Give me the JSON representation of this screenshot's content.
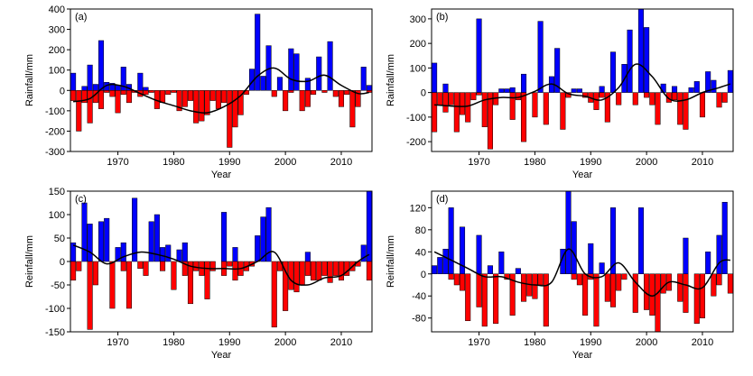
{
  "chart_data": [
    {
      "type": "bar",
      "label": "(a)",
      "xlabel": "Year",
      "ylabel": "Rainfall/mm",
      "x": [
        1962,
        1963,
        1964,
        1965,
        1966,
        1967,
        1968,
        1969,
        1970,
        1971,
        1972,
        1973,
        1974,
        1975,
        1976,
        1977,
        1978,
        1979,
        1980,
        1981,
        1982,
        1983,
        1984,
        1985,
        1986,
        1987,
        1988,
        1989,
        1990,
        1991,
        1992,
        1993,
        1994,
        1995,
        1996,
        1997,
        1998,
        1999,
        2000,
        2001,
        2002,
        2003,
        2004,
        2005,
        2006,
        2007,
        2008,
        2009,
        2010,
        2011,
        2012,
        2013,
        2014,
        2015
      ],
      "xlim": [
        1961.5,
        2015.5
      ],
      "xticks": [
        1970,
        1980,
        1990,
        2000,
        2010
      ],
      "ylim": [
        -300,
        400
      ],
      "yticks": [
        -300,
        -200,
        -100,
        0,
        100,
        200,
        300,
        400
      ],
      "series": [
        {
          "color": "#0000ff",
          "values": [
            85,
            null,
            20,
            125,
            30,
            245,
            40,
            35,
            25,
            115,
            30,
            null,
            85,
            15,
            null,
            null,
            null,
            null,
            null,
            null,
            null,
            null,
            null,
            null,
            null,
            null,
            null,
            null,
            null,
            null,
            null,
            null,
            105,
            375,
            70,
            220,
            null,
            65,
            null,
            205,
            180,
            null,
            60,
            null,
            165,
            null,
            240,
            null,
            null,
            null,
            null,
            null,
            115,
            25
          ]
        },
        {
          "color": "#ff0000",
          "values": [
            -50,
            -200,
            -60,
            -160,
            -60,
            -90,
            -10,
            -30,
            -110,
            -20,
            -60,
            -10,
            -30,
            -20,
            -10,
            -90,
            -60,
            -20,
            -10,
            -100,
            -80,
            -50,
            -160,
            -150,
            -120,
            -50,
            -90,
            -60,
            -280,
            -180,
            -120,
            -20,
            null,
            null,
            null,
            null,
            -30,
            null,
            -100,
            -10,
            null,
            -100,
            -80,
            -20,
            null,
            -10,
            null,
            -30,
            -80,
            -20,
            -180,
            -80,
            null,
            -10
          ]
        },
        {
          "type": "line",
          "color": "#000000",
          "x": [
            1962,
            1965,
            1968,
            1971,
            1974,
            1977,
            1980,
            1983,
            1986,
            1989,
            1992,
            1995,
            1998,
            2001,
            2004,
            2007,
            2010,
            2013,
            2015
          ],
          "values": [
            -55,
            -40,
            25,
            20,
            -15,
            -50,
            -75,
            -100,
            -110,
            -80,
            -25,
            70,
            110,
            55,
            45,
            75,
            25,
            -15,
            -10
          ]
        }
      ]
    },
    {
      "type": "bar",
      "label": "(b)",
      "xlabel": "Year",
      "ylabel": "Rainfall/mm",
      "x": [
        1962,
        1963,
        1964,
        1965,
        1966,
        1967,
        1968,
        1969,
        1970,
        1971,
        1972,
        1973,
        1974,
        1975,
        1976,
        1977,
        1978,
        1979,
        1980,
        1981,
        1982,
        1983,
        1984,
        1985,
        1986,
        1987,
        1988,
        1989,
        1990,
        1991,
        1992,
        1993,
        1994,
        1995,
        1996,
        1997,
        1998,
        1999,
        2000,
        2001,
        2002,
        2003,
        2004,
        2005,
        2006,
        2007,
        2008,
        2009,
        2010,
        2011,
        2012,
        2013,
        2014,
        2015
      ],
      "xlim": [
        1961.5,
        2015.5
      ],
      "xticks": [
        1970,
        1980,
        1990,
        2000,
        2010
      ],
      "ylim": [
        -240,
        340
      ],
      "yticks": [
        -200,
        -100,
        0,
        100,
        200,
        300
      ],
      "series": [
        {
          "color": "#0000ff",
          "values": [
            120,
            null,
            35,
            null,
            null,
            null,
            null,
            null,
            300,
            null,
            null,
            null,
            15,
            15,
            20,
            null,
            75,
            null,
            null,
            290,
            null,
            65,
            180,
            null,
            null,
            15,
            15,
            null,
            null,
            null,
            25,
            null,
            165,
            null,
            115,
            255,
            null,
            340,
            265,
            null,
            null,
            35,
            null,
            25,
            null,
            null,
            20,
            45,
            null,
            85,
            50,
            null,
            null,
            90
          ]
        },
        {
          "color": "#ff0000",
          "values": [
            -160,
            -50,
            -80,
            -50,
            -160,
            -90,
            -120,
            -30,
            -10,
            -140,
            -230,
            -50,
            null,
            null,
            -110,
            -30,
            -200,
            null,
            -100,
            null,
            -130,
            null,
            null,
            -150,
            -20,
            null,
            null,
            -20,
            -40,
            -70,
            -20,
            -120,
            null,
            -50,
            null,
            null,
            -50,
            null,
            -20,
            -50,
            -130,
            null,
            -40,
            -30,
            -130,
            -150,
            null,
            null,
            -100,
            null,
            null,
            -60,
            -40,
            null
          ]
        },
        {
          "type": "line",
          "color": "#000000",
          "x": [
            1962,
            1965,
            1968,
            1971,
            1974,
            1977,
            1980,
            1983,
            1986,
            1989,
            1992,
            1995,
            1998,
            2001,
            2004,
            2007,
            2010,
            2013,
            2015
          ],
          "values": [
            -50,
            -55,
            -55,
            -30,
            -20,
            -20,
            5,
            35,
            -5,
            -15,
            -30,
            20,
            115,
            65,
            -25,
            -30,
            0,
            20,
            35
          ]
        }
      ]
    },
    {
      "type": "bar",
      "label": "(c)",
      "xlabel": "Year",
      "ylabel": "Reinfall/mm",
      "x": [
        1962,
        1963,
        1964,
        1965,
        1966,
        1967,
        1968,
        1969,
        1970,
        1971,
        1972,
        1973,
        1974,
        1975,
        1976,
        1977,
        1978,
        1979,
        1980,
        1981,
        1982,
        1983,
        1984,
        1985,
        1986,
        1987,
        1988,
        1989,
        1990,
        1991,
        1992,
        1993,
        1994,
        1995,
        1996,
        1997,
        1998,
        1999,
        2000,
        2001,
        2002,
        2003,
        2004,
        2005,
        2006,
        2007,
        2008,
        2009,
        2010,
        2011,
        2012,
        2013,
        2014,
        2015
      ],
      "xlim": [
        1961.5,
        2015.5
      ],
      "xticks": [
        1970,
        1980,
        1990,
        2000,
        2010
      ],
      "ylim": [
        -150,
        150
      ],
      "yticks": [
        -150,
        -100,
        -50,
        0,
        50,
        100,
        150
      ],
      "series": [
        {
          "color": "#0000ff",
          "values": [
            40,
            null,
            125,
            80,
            null,
            85,
            92,
            null,
            30,
            40,
            null,
            135,
            null,
            null,
            85,
            100,
            30,
            35,
            null,
            25,
            40,
            null,
            null,
            null,
            null,
            null,
            null,
            105,
            null,
            30,
            null,
            null,
            null,
            55,
            95,
            115,
            null,
            null,
            null,
            null,
            null,
            null,
            20,
            null,
            null,
            null,
            null,
            null,
            null,
            null,
            null,
            null,
            35,
            150
          ]
        },
        {
          "color": "#ff0000",
          "values": [
            -40,
            -20,
            null,
            -145,
            -50,
            null,
            null,
            -100,
            null,
            -20,
            -100,
            null,
            -15,
            -30,
            null,
            null,
            -20,
            null,
            -60,
            null,
            -30,
            -90,
            -20,
            -30,
            -80,
            -20,
            null,
            -30,
            -10,
            -40,
            -30,
            -20,
            -10,
            null,
            null,
            null,
            -140,
            -20,
            -105,
            -60,
            -65,
            -50,
            -30,
            -40,
            -40,
            -30,
            -45,
            -30,
            -40,
            -30,
            -20,
            -10,
            null,
            -40
          ]
        },
        {
          "type": "line",
          "color": "#000000",
          "x": [
            1962,
            1965,
            1968,
            1971,
            1974,
            1977,
            1980,
            1983,
            1986,
            1989,
            1992,
            1995,
            1998,
            2001,
            2004,
            2007,
            2010,
            2013,
            2015
          ],
          "values": [
            35,
            20,
            -5,
            10,
            20,
            15,
            5,
            -10,
            -15,
            -15,
            -15,
            0,
            20,
            -40,
            -50,
            -35,
            -30,
            0,
            15
          ]
        }
      ]
    },
    {
      "type": "bar",
      "label": "(d)",
      "xlabel": "Year",
      "ylabel": "Reinfall/mm",
      "x": [
        1962,
        1963,
        1964,
        1965,
        1966,
        1967,
        1968,
        1969,
        1970,
        1971,
        1972,
        1973,
        1974,
        1975,
        1976,
        1977,
        1978,
        1979,
        1980,
        1981,
        1982,
        1983,
        1984,
        1985,
        1986,
        1987,
        1988,
        1989,
        1990,
        1991,
        1992,
        1993,
        1994,
        1995,
        1996,
        1997,
        1998,
        1999,
        2000,
        2001,
        2002,
        2003,
        2004,
        2005,
        2006,
        2007,
        2008,
        2009,
        2010,
        2011,
        2012,
        2013,
        2014,
        2015
      ],
      "xlim": [
        1961.5,
        2015.5
      ],
      "xticks": [
        1970,
        1980,
        1990,
        2000,
        2010
      ],
      "ylim": [
        -105,
        150
      ],
      "yticks": [
        -80,
        -40,
        0,
        40,
        80,
        120
      ],
      "series": [
        {
          "color": "#0000ff",
          "values": [
            15,
            30,
            45,
            120,
            null,
            85,
            null,
            null,
            70,
            null,
            15,
            null,
            40,
            null,
            null,
            10,
            null,
            null,
            null,
            null,
            null,
            null,
            null,
            45,
            150,
            95,
            null,
            null,
            55,
            null,
            20,
            null,
            120,
            null,
            null,
            null,
            null,
            120,
            null,
            null,
            null,
            null,
            null,
            null,
            null,
            65,
            null,
            null,
            null,
            40,
            null,
            70,
            130,
            null
          ]
        },
        {
          "color": "#ff0000",
          "values": [
            null,
            null,
            null,
            -10,
            -20,
            -30,
            -85,
            null,
            -60,
            -95,
            null,
            -90,
            null,
            -10,
            -75,
            null,
            -50,
            -40,
            -45,
            -20,
            -95,
            null,
            null,
            null,
            null,
            -10,
            -20,
            -75,
            -10,
            -95,
            null,
            -50,
            -60,
            -30,
            -10,
            null,
            -70,
            null,
            -65,
            -75,
            -105,
            -35,
            -30,
            null,
            -50,
            -70,
            null,
            -90,
            -80,
            null,
            -40,
            -20,
            null,
            -35
          ]
        },
        {
          "type": "line",
          "color": "#000000",
          "x": [
            1962,
            1965,
            1968,
            1971,
            1974,
            1977,
            1980,
            1983,
            1986,
            1989,
            1992,
            1995,
            1998,
            2001,
            2004,
            2007,
            2010,
            2013,
            2015
          ],
          "values": [
            40,
            25,
            10,
            -5,
            -5,
            -15,
            -20,
            -15,
            45,
            0,
            -5,
            20,
            -15,
            -40,
            -15,
            -20,
            -25,
            20,
            25
          ]
        }
      ]
    }
  ]
}
